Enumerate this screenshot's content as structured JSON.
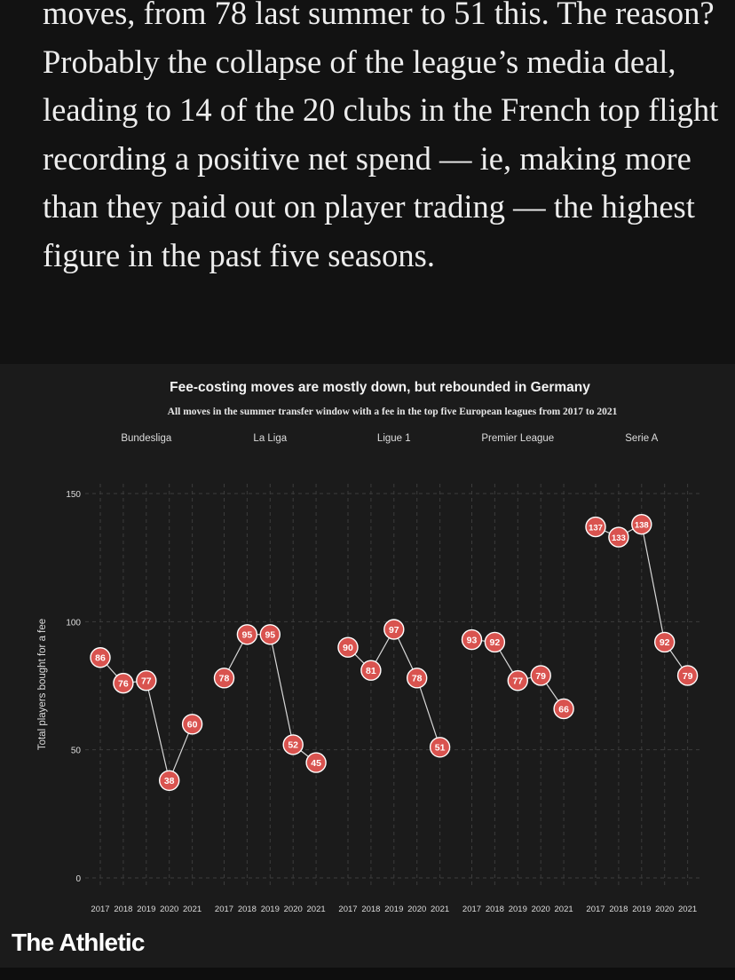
{
  "article": {
    "paragraph": "moves, from 78 last summer to 51 this. The reason? Probably the collapse of the league’s media deal, leading to 14 of the 20 clubs in the French top flight recording a positive net spend — ie, making more than they paid out on player trading — the highest figure in the past five seasons."
  },
  "brand": {
    "name": "The Athletic"
  },
  "colors": {
    "marker": "#d9534f",
    "marker_stroke": "#ffffff",
    "line": "#d8d8d8",
    "grid": "#3c3c3c",
    "text": "#dddddd"
  },
  "chart_data": {
    "type": "line",
    "title": "Fee-costing moves are mostly down, but rebounded in Germany",
    "subtitle": "All moves in the summer transfer window with a fee in the top five European leagues from 2017 to 2021",
    "ylabel": "Total players bought for a fee",
    "ylim": [
      0,
      150
    ],
    "yticks": [
      0,
      50,
      100,
      150
    ],
    "x": [
      "2017",
      "2018",
      "2019",
      "2020",
      "2021"
    ],
    "series": [
      {
        "name": "Bundesliga",
        "values": [
          86,
          76,
          77,
          38,
          60
        ]
      },
      {
        "name": "La Liga",
        "values": [
          78,
          95,
          95,
          52,
          45
        ]
      },
      {
        "name": "Ligue 1",
        "values": [
          90,
          81,
          97,
          78,
          51
        ]
      },
      {
        "name": "Premier League",
        "values": [
          93,
          92,
          77,
          79,
          66
        ]
      },
      {
        "name": "Serie A",
        "values": [
          137,
          133,
          138,
          92,
          79
        ]
      }
    ]
  }
}
